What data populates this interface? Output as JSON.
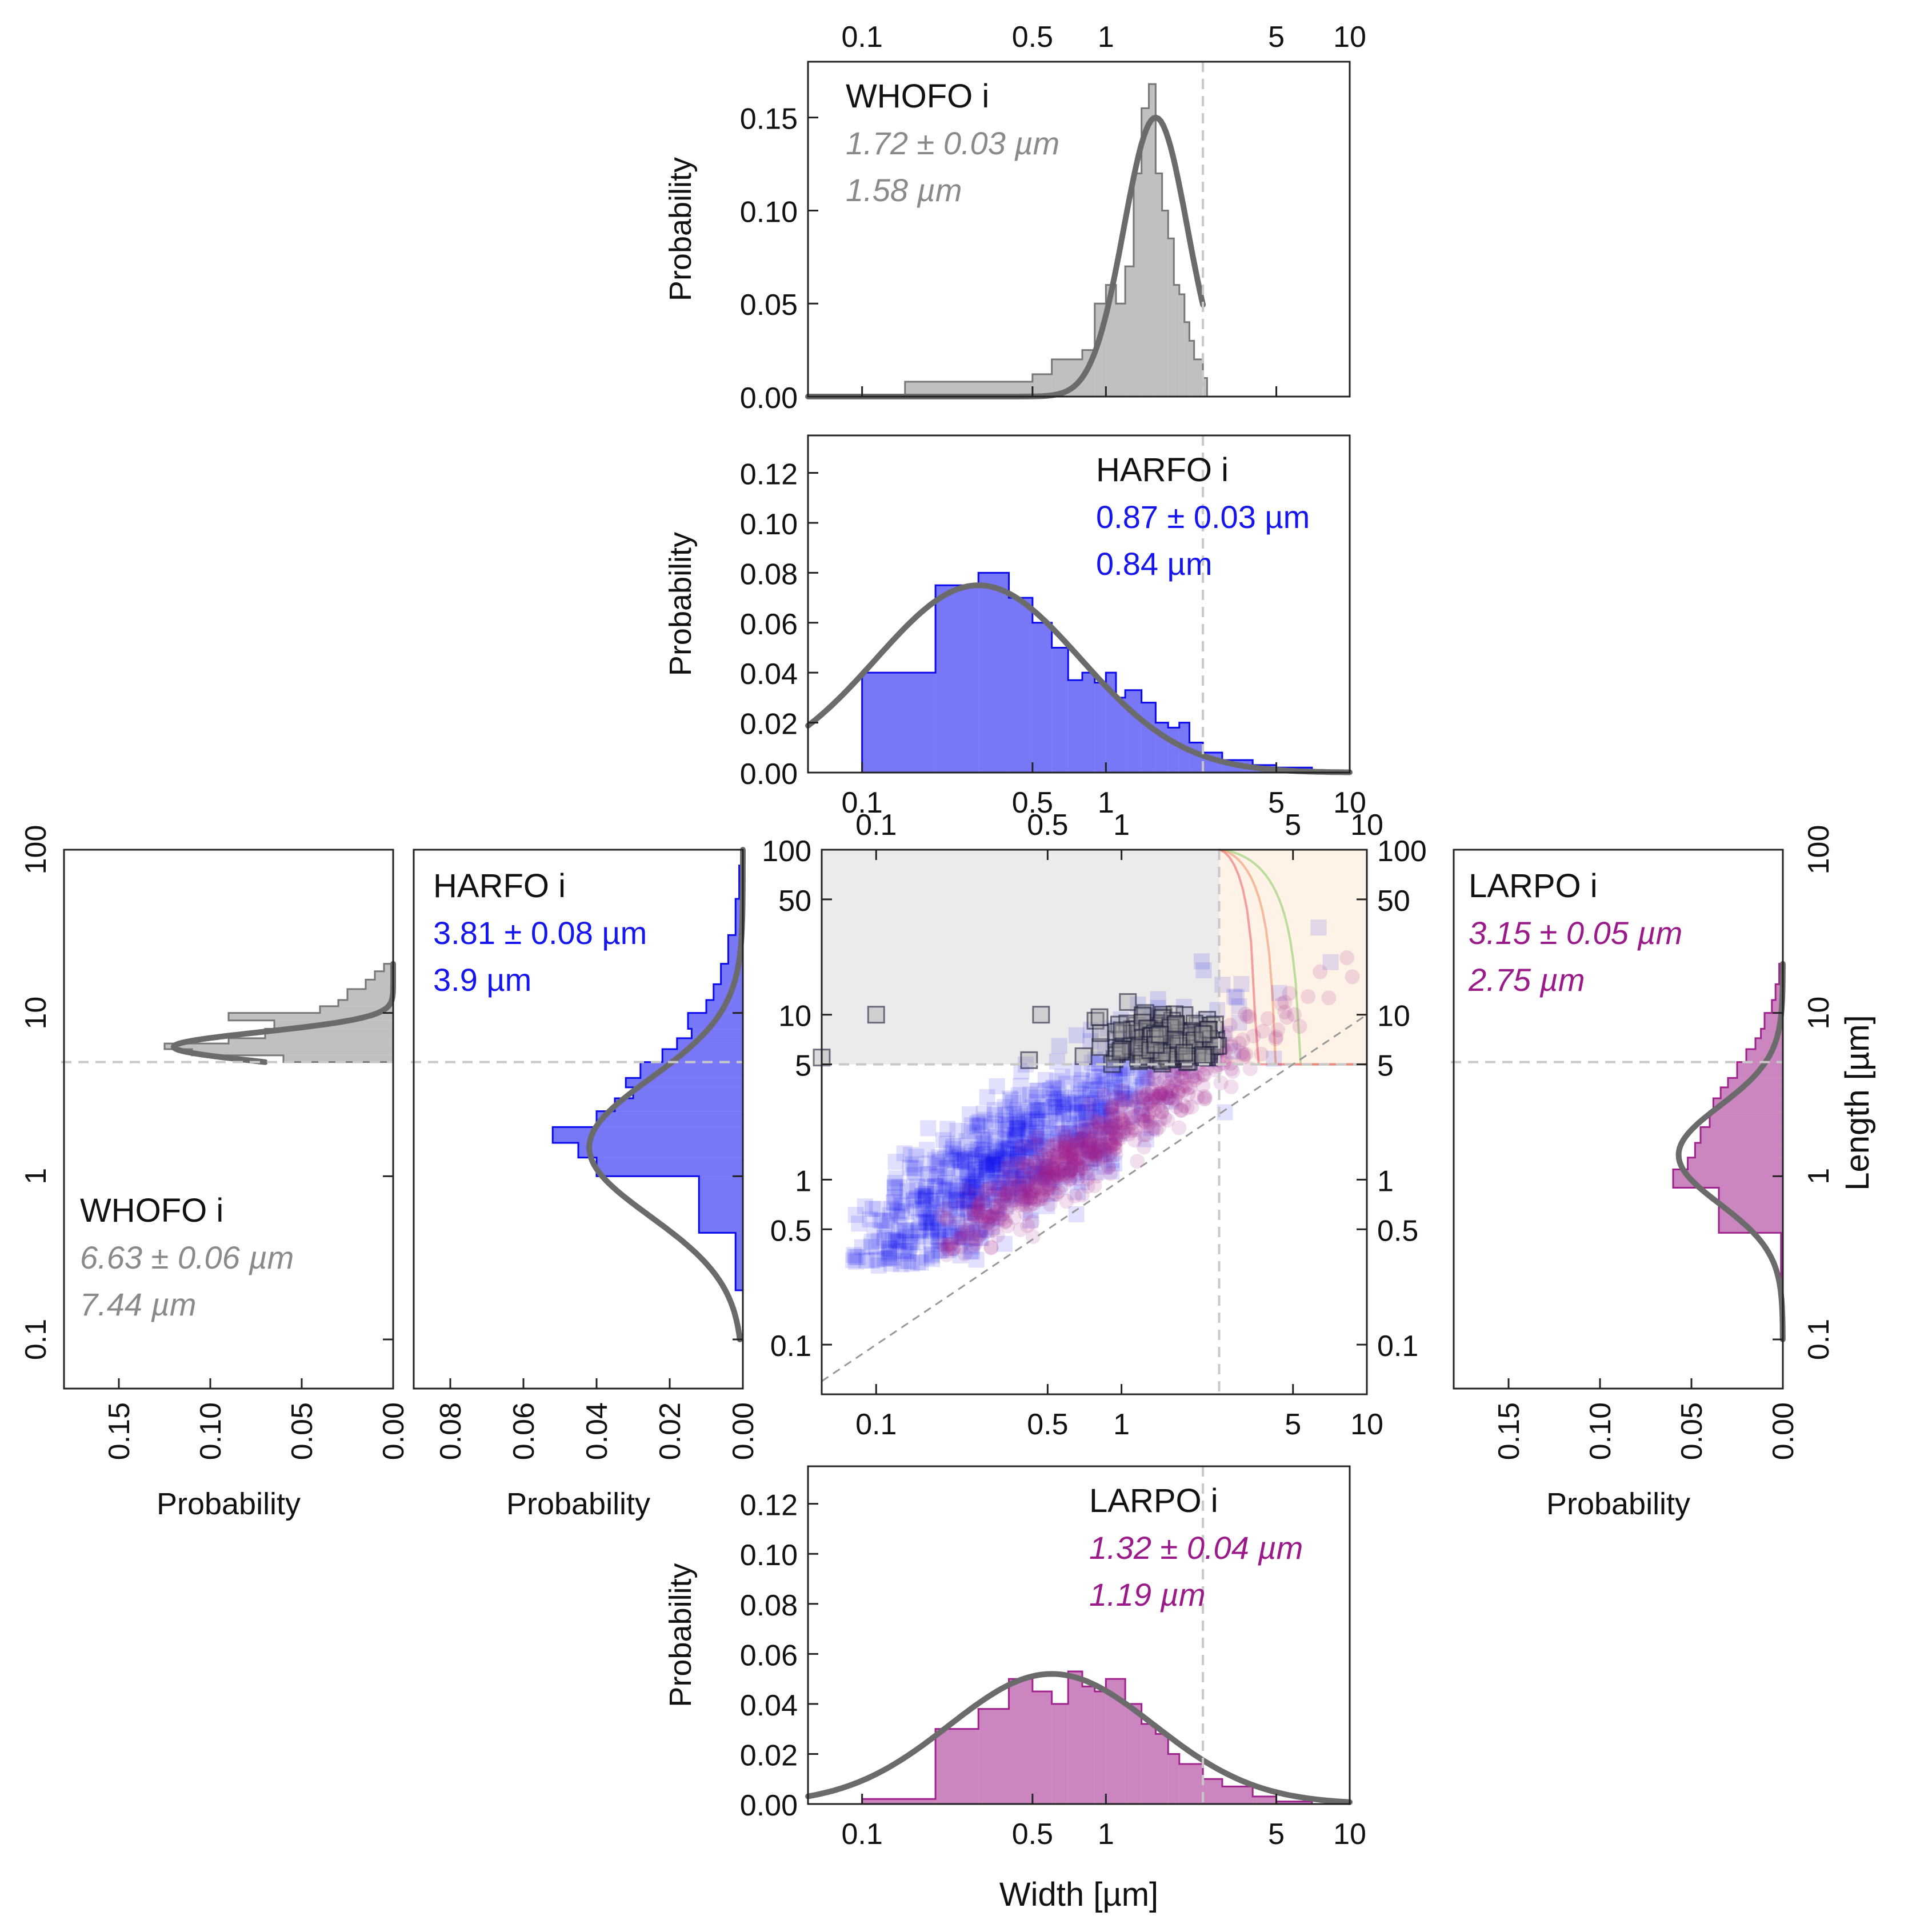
{
  "chart_data": {
    "type": "scatter",
    "title": "",
    "xlabel": "Width [µm]",
    "ylabel": "Length [µm]",
    "colors": {
      "whofo": "#8c8c8c",
      "harfo": "#0a0af0",
      "larpo": "#a0228c",
      "fit": "#6b6b6b",
      "ref_dash": "#c8c8c8"
    },
    "axes": {
      "width_ticks": [
        "0.1",
        "0.5",
        "1",
        "5",
        "10"
      ],
      "length_ticks": [
        "100",
        "50",
        "10",
        "5",
        "1",
        "0.5",
        "0.1"
      ],
      "length_ticks_side": [
        "100",
        "10",
        "1",
        "0.1"
      ],
      "prob_label": "Probability",
      "width_range_um": [
        0.06,
        10
      ],
      "length_range_um": [
        0.05,
        100
      ],
      "width_cutoff_um": 2.5,
      "length_cutoff_um": 5
    },
    "top_histograms": [
      {
        "id": "whofo-width",
        "panel_title": "WHOFO  i",
        "mean_text": "1.72 ± 0.03 µm",
        "median_text": "1.58 µm",
        "ylim": [
          0,
          0.18
        ],
        "yticks": [
          "0.00",
          "0.05",
          "0.10",
          "0.15"
        ],
        "bin_edges": [
          0.15,
          0.5,
          0.6,
          0.8,
          0.9,
          1.0,
          1.1,
          1.2,
          1.3,
          1.4,
          1.5,
          1.6,
          1.7,
          1.8,
          1.9,
          2.0,
          2.1,
          2.2,
          2.3,
          2.5,
          2.6
        ],
        "values": [
          0.008,
          0.012,
          0.02,
          0.025,
          0.05,
          0.06,
          0.05,
          0.07,
          0.12,
          0.155,
          0.168,
          0.12,
          0.1,
          0.085,
          0.06,
          0.055,
          0.04,
          0.03,
          0.02,
          0.01
        ],
        "fit": {
          "mode_um": 1.6,
          "sigma_log10": 0.13,
          "peak": 0.15,
          "x_range_um": [
            0.06,
            2.5
          ]
        }
      },
      {
        "id": "harfo-width",
        "panel_title": "HARFO  i",
        "mean_text": "0.87 ± 0.03 µm",
        "median_text": "0.84 µm",
        "ylim": [
          0,
          0.135
        ],
        "yticks": [
          "0.00",
          "0.02",
          "0.04",
          "0.06",
          "0.08",
          "0.10",
          "0.12"
        ],
        "bin_edges": [
          0.1,
          0.2,
          0.3,
          0.4,
          0.5,
          0.6,
          0.7,
          0.8,
          0.9,
          1.0,
          1.1,
          1.2,
          1.4,
          1.6,
          1.8,
          2.0,
          2.2,
          2.5,
          3.0,
          4.0,
          5.0,
          7.0
        ],
        "values": [
          0.04,
          0.075,
          0.08,
          0.07,
          0.06,
          0.05,
          0.037,
          0.04,
          0.036,
          0.04,
          0.03,
          0.033,
          0.028,
          0.02,
          0.018,
          0.02,
          0.012,
          0.008,
          0.005,
          0.003,
          0.002
        ],
        "fit": {
          "mode_um": 0.3,
          "sigma_log10": 0.42,
          "peak": 0.075,
          "x_range_um": [
            0.06,
            10
          ]
        }
      }
    ],
    "bottom_histogram": {
      "id": "larpo-width",
      "panel_title": "LARPO  i",
      "mean_text": "1.32 ± 0.04 µm",
      "median_text": "1.19 µm",
      "ylim": [
        0,
        0.135
      ],
      "yticks": [
        "0.00",
        "0.02",
        "0.04",
        "0.06",
        "0.08",
        "0.10",
        "0.12"
      ],
      "bin_edges": [
        0.1,
        0.2,
        0.3,
        0.4,
        0.5,
        0.6,
        0.7,
        0.8,
        0.9,
        1.0,
        1.2,
        1.4,
        1.6,
        1.8,
        2.0,
        2.5,
        3.0,
        4.0,
        5.0,
        7.0
      ],
      "values": [
        0.002,
        0.03,
        0.038,
        0.05,
        0.045,
        0.04,
        0.053,
        0.047,
        0.045,
        0.05,
        0.04,
        0.032,
        0.028,
        0.02,
        0.016,
        0.01,
        0.007,
        0.003,
        0.001
      ],
      "fit": {
        "mode_um": 0.6,
        "sigma_log10": 0.42,
        "peak": 0.052,
        "x_range_um": [
          0.06,
          10
        ]
      }
    },
    "side_histograms": [
      {
        "id": "whofo-length",
        "panel_title": "WHOFO  i",
        "mean_text": "6.63 ± 0.06 µm",
        "median_text": "7.44 µm",
        "xlim": [
          0.18,
          0
        ],
        "xticks": [
          "0.15",
          "0.10",
          "0.05",
          "0.00"
        ],
        "bin_edges": [
          5.0,
          5.5,
          6.0,
          6.5,
          7.0,
          8.0,
          9.0,
          10.0,
          11.0,
          12.0,
          14.0,
          16.0,
          18.0,
          20.0
        ],
        "values": [
          0.06,
          0.11,
          0.125,
          0.09,
          0.07,
          0.065,
          0.09,
          0.04,
          0.03,
          0.025,
          0.015,
          0.01,
          0.005
        ],
        "fit": {
          "mode_um": 6.2,
          "sigma_log10": 0.09,
          "peak": 0.12,
          "y_range_um": [
            5,
            20
          ]
        }
      },
      {
        "id": "harfo-length",
        "panel_title": "HARFO  i",
        "mean_text": "3.81 ± 0.08 µm",
        "median_text": "3.9 µm",
        "xlim": [
          0.09,
          0
        ],
        "xticks": [
          "0.08",
          "0.06",
          "0.04",
          "0.02",
          "0.00"
        ],
        "bin_edges": [
          0.2,
          0.45,
          1.0,
          1.3,
          1.6,
          2.0,
          2.5,
          3.0,
          3.5,
          4.0,
          5.0,
          6.0,
          7.0,
          8.0,
          10.0,
          12.0,
          15.0,
          20.0,
          30.0,
          50.0,
          80.0
        ],
        "values": [
          0.002,
          0.012,
          0.04,
          0.045,
          0.052,
          0.04,
          0.035,
          0.03,
          0.032,
          0.028,
          0.022,
          0.018,
          0.014,
          0.015,
          0.01,
          0.008,
          0.006,
          0.004,
          0.002,
          0.001
        ],
        "fit": {
          "mode_um": 1.5,
          "sigma_log10": 0.42,
          "peak": 0.042,
          "y_range_um": [
            0.1,
            100
          ]
        }
      },
      {
        "id": "larpo-length",
        "panel_title": "LARPO  i",
        "mean_text": "3.15 ± 0.05 µm",
        "median_text": "2.75 µm",
        "xlim": [
          0.18,
          0
        ],
        "xticks": [
          "0.15",
          "0.10",
          "0.05",
          "0.00"
        ],
        "bin_edges": [
          0.2,
          0.45,
          0.85,
          1.1,
          1.3,
          1.6,
          2.0,
          2.5,
          3.0,
          3.5,
          4.0,
          5.0,
          6.0,
          7.0,
          8.0,
          10.0,
          12.0,
          15.0,
          20.0
        ],
        "values": [
          0.001,
          0.035,
          0.06,
          0.052,
          0.048,
          0.045,
          0.04,
          0.038,
          0.034,
          0.03,
          0.025,
          0.02,
          0.015,
          0.012,
          0.01,
          0.006,
          0.004,
          0.002
        ],
        "fit": {
          "mode_um": 1.35,
          "sigma_log10": 0.3,
          "peak": 0.057,
          "y_range_um": [
            0.1,
            20
          ]
        }
      }
    ]
  }
}
